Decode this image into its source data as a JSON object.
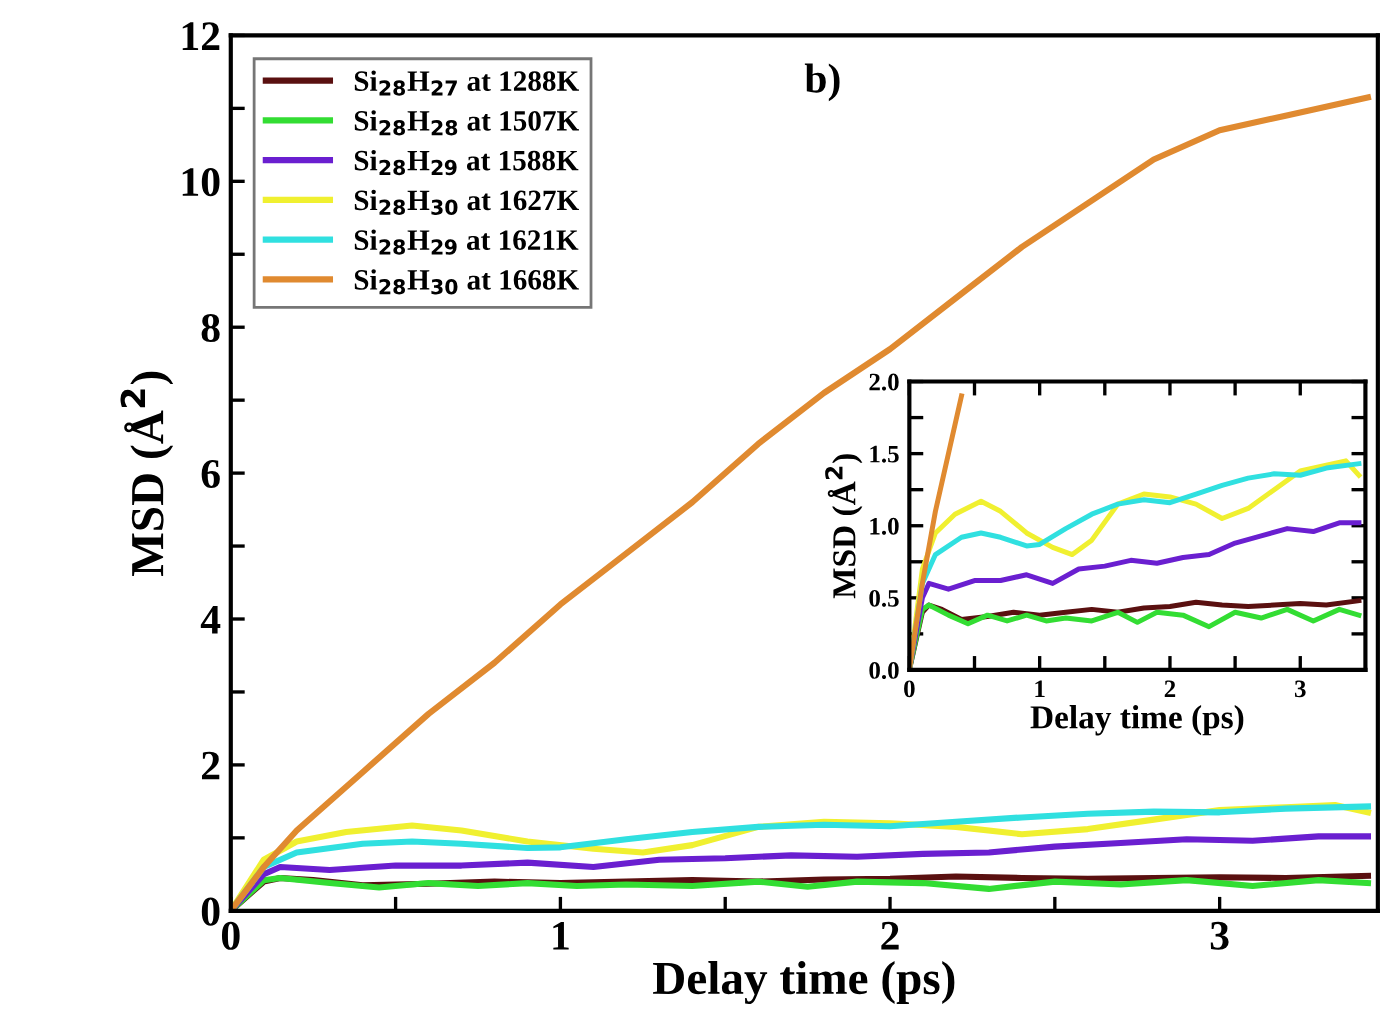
{
  "chart_data": [
    {
      "type": "line",
      "xlabel": "Delay time (ps)",
      "ylabel": "MSD (Å$^{2}$)",
      "annotations": [
        "b)"
      ],
      "legend": "top left",
      "grid": false,
      "xlim": [
        0,
        3.48
      ],
      "ylim": [
        0,
        12
      ],
      "xticks": [
        0,
        {
          "value": 0.5,
          "label": null
        },
        1,
        {
          "value": 1.5,
          "label": null
        },
        2,
        {
          "value": 2.5,
          "label": null
        },
        3
      ],
      "yticks": [
        0,
        {
          "value": 1,
          "label": null
        },
        2,
        {
          "value": 3,
          "label": null
        },
        4,
        {
          "value": 5,
          "label": null
        },
        6,
        {
          "value": 7,
          "label": null
        },
        8,
        {
          "value": 9,
          "label": null
        },
        10,
        {
          "value": 11,
          "label": null
        },
        12
      ],
      "series": [
        {
          "name": "Si$_{28}$H$_{27}$ at 1288K",
          "color": "#5a1010",
          "x": [
            0,
            0.1,
            0.15,
            0.25,
            0.4,
            0.6,
            0.8,
            1.0,
            1.2,
            1.4,
            1.6,
            1.8,
            2.0,
            2.2,
            2.4,
            2.6,
            2.8,
            3.0,
            3.2,
            3.45
          ],
          "values": [
            0,
            0.4,
            0.45,
            0.42,
            0.35,
            0.37,
            0.4,
            0.38,
            0.4,
            0.42,
            0.4,
            0.43,
            0.44,
            0.47,
            0.45,
            0.44,
            0.45,
            0.46,
            0.45,
            0.48
          ]
        },
        {
          "name": "Si$_{28}$H$_{28}$ at 1507K",
          "color": "#33dd33",
          "x": [
            0,
            0.1,
            0.15,
            0.3,
            0.45,
            0.6,
            0.75,
            0.9,
            1.05,
            1.2,
            1.4,
            1.6,
            1.75,
            1.9,
            2.1,
            2.3,
            2.5,
            2.7,
            2.9,
            3.1,
            3.3,
            3.45
          ],
          "values": [
            0,
            0.42,
            0.45,
            0.38,
            0.32,
            0.38,
            0.34,
            0.38,
            0.34,
            0.36,
            0.34,
            0.4,
            0.33,
            0.4,
            0.38,
            0.3,
            0.4,
            0.36,
            0.42,
            0.34,
            0.42,
            0.38
          ]
        },
        {
          "name": "Si$_{28}$H$_{29}$ at 1588K",
          "color": "#6a1fd0",
          "x": [
            0,
            0.1,
            0.15,
            0.3,
            0.5,
            0.7,
            0.9,
            1.1,
            1.3,
            1.5,
            1.7,
            1.9,
            2.1,
            2.3,
            2.5,
            2.7,
            2.9,
            3.1,
            3.3,
            3.45
          ],
          "values": [
            0,
            0.5,
            0.6,
            0.56,
            0.62,
            0.62,
            0.66,
            0.6,
            0.7,
            0.72,
            0.76,
            0.74,
            0.78,
            0.8,
            0.88,
            0.93,
            0.98,
            0.96,
            1.02,
            1.02
          ]
        },
        {
          "name": "Si$_{28}$H$_{30}$ at 1627K",
          "color": "#f0f030",
          "x": [
            0,
            0.1,
            0.2,
            0.35,
            0.55,
            0.7,
            0.9,
            1.1,
            1.25,
            1.4,
            1.6,
            1.8,
            2.0,
            2.2,
            2.4,
            2.6,
            2.8,
            3.0,
            3.2,
            3.35,
            3.45
          ],
          "values": [
            0,
            0.7,
            0.95,
            1.08,
            1.17,
            1.1,
            0.95,
            0.85,
            0.8,
            0.9,
            1.15,
            1.22,
            1.2,
            1.15,
            1.05,
            1.12,
            1.25,
            1.38,
            1.42,
            1.45,
            1.35
          ]
        },
        {
          "name": "Si$_{28}$H$_{29}$ at 1621K",
          "color": "#30e0e0",
          "x": [
            0,
            0.1,
            0.2,
            0.4,
            0.55,
            0.7,
            0.9,
            1.0,
            1.2,
            1.4,
            1.6,
            1.8,
            2.0,
            2.2,
            2.4,
            2.6,
            2.8,
            3.0,
            3.2,
            3.45
          ],
          "values": [
            0,
            0.6,
            0.8,
            0.92,
            0.95,
            0.92,
            0.86,
            0.87,
            0.98,
            1.08,
            1.15,
            1.18,
            1.16,
            1.22,
            1.28,
            1.33,
            1.36,
            1.35,
            1.4,
            1.43
          ]
        },
        {
          "name": "Si$_{28}$H$_{30}$ at 1668K",
          "color": "#e08a30",
          "x": [
            0,
            0.1,
            0.2,
            0.4,
            0.6,
            0.8,
            1.0,
            1.2,
            1.4,
            1.6,
            1.8,
            2.0,
            2.2,
            2.4,
            2.6,
            2.8,
            3.0,
            3.2,
            3.45
          ],
          "values": [
            0,
            0.6,
            1.1,
            1.9,
            2.7,
            3.4,
            4.2,
            4.9,
            5.6,
            6.4,
            7.1,
            7.7,
            8.4,
            9.1,
            9.7,
            10.3,
            10.7,
            10.9,
            11.15
          ]
        }
      ]
    },
    {
      "type": "line",
      "xlabel": "Delay time (ps)",
      "ylabel": "MSD (Å$^{2}$)",
      "grid": false,
      "xlim": [
        0,
        3.5
      ],
      "ylim": [
        0,
        2.0
      ],
      "xticks": [
        0,
        {
          "value": 0.5,
          "label": null
        },
        1,
        {
          "value": 1.5,
          "label": null
        },
        2,
        {
          "value": 2.5,
          "label": null
        },
        3
      ],
      "yticks": [
        {
          "value": 0,
          "label": "0.0"
        },
        {
          "value": 0.25,
          "label": null
        },
        0.5,
        {
          "value": 0.75,
          "label": null
        },
        {
          "value": 1,
          "label": "1.0"
        },
        {
          "value": 1.25,
          "label": null
        },
        1.5,
        {
          "value": 1.75,
          "label": null
        },
        {
          "value": 2,
          "label": "2.0"
        }
      ],
      "series": [
        {
          "color": "#5a1010",
          "x": [
            0,
            0.1,
            0.15,
            0.25,
            0.4,
            0.6,
            0.8,
            1.0,
            1.2,
            1.4,
            1.6,
            1.8,
            2.0,
            2.2,
            2.4,
            2.6,
            2.8,
            3.0,
            3.2,
            3.45
          ],
          "values": [
            0,
            0.4,
            0.45,
            0.42,
            0.35,
            0.37,
            0.4,
            0.38,
            0.4,
            0.42,
            0.4,
            0.43,
            0.44,
            0.47,
            0.45,
            0.44,
            0.45,
            0.46,
            0.45,
            0.48
          ]
        },
        {
          "color": "#33dd33",
          "x": [
            0,
            0.1,
            0.15,
            0.3,
            0.45,
            0.6,
            0.75,
            0.9,
            1.05,
            1.2,
            1.4,
            1.6,
            1.75,
            1.9,
            2.1,
            2.3,
            2.5,
            2.7,
            2.9,
            3.1,
            3.3,
            3.45
          ],
          "values": [
            0,
            0.42,
            0.45,
            0.38,
            0.32,
            0.38,
            0.34,
            0.38,
            0.34,
            0.36,
            0.34,
            0.4,
            0.33,
            0.4,
            0.38,
            0.3,
            0.4,
            0.36,
            0.42,
            0.34,
            0.42,
            0.38
          ]
        },
        {
          "color": "#6a1fd0",
          "x": [
            0,
            0.1,
            0.15,
            0.3,
            0.5,
            0.7,
            0.9,
            1.1,
            1.3,
            1.5,
            1.7,
            1.9,
            2.1,
            2.3,
            2.5,
            2.7,
            2.9,
            3.1,
            3.3,
            3.45
          ],
          "values": [
            0,
            0.5,
            0.6,
            0.56,
            0.62,
            0.62,
            0.66,
            0.6,
            0.7,
            0.72,
            0.76,
            0.74,
            0.78,
            0.8,
            0.88,
            0.93,
            0.98,
            0.96,
            1.02,
            1.02
          ]
        },
        {
          "color": "#f0f030",
          "x": [
            0,
            0.1,
            0.2,
            0.35,
            0.55,
            0.7,
            0.9,
            1.1,
            1.25,
            1.4,
            1.6,
            1.8,
            2.0,
            2.2,
            2.4,
            2.6,
            2.8,
            3.0,
            3.2,
            3.35,
            3.45
          ],
          "values": [
            0,
            0.7,
            0.95,
            1.08,
            1.17,
            1.1,
            0.95,
            0.85,
            0.8,
            0.9,
            1.15,
            1.22,
            1.2,
            1.15,
            1.05,
            1.12,
            1.25,
            1.38,
            1.42,
            1.45,
            1.35
          ]
        },
        {
          "color": "#30e0e0",
          "x": [
            0,
            0.1,
            0.2,
            0.4,
            0.55,
            0.7,
            0.9,
            1.0,
            1.2,
            1.4,
            1.6,
            1.8,
            2.0,
            2.2,
            2.4,
            2.6,
            2.8,
            3.0,
            3.2,
            3.45
          ],
          "values": [
            0,
            0.6,
            0.8,
            0.92,
            0.95,
            0.92,
            0.86,
            0.87,
            0.98,
            1.08,
            1.15,
            1.18,
            1.16,
            1.22,
            1.28,
            1.33,
            1.36,
            1.35,
            1.4,
            1.43
          ]
        },
        {
          "color": "#e08a30",
          "x": [
            0,
            0.1,
            0.2,
            0.4
          ],
          "values": [
            0,
            0.6,
            1.1,
            1.9
          ]
        }
      ]
    }
  ]
}
